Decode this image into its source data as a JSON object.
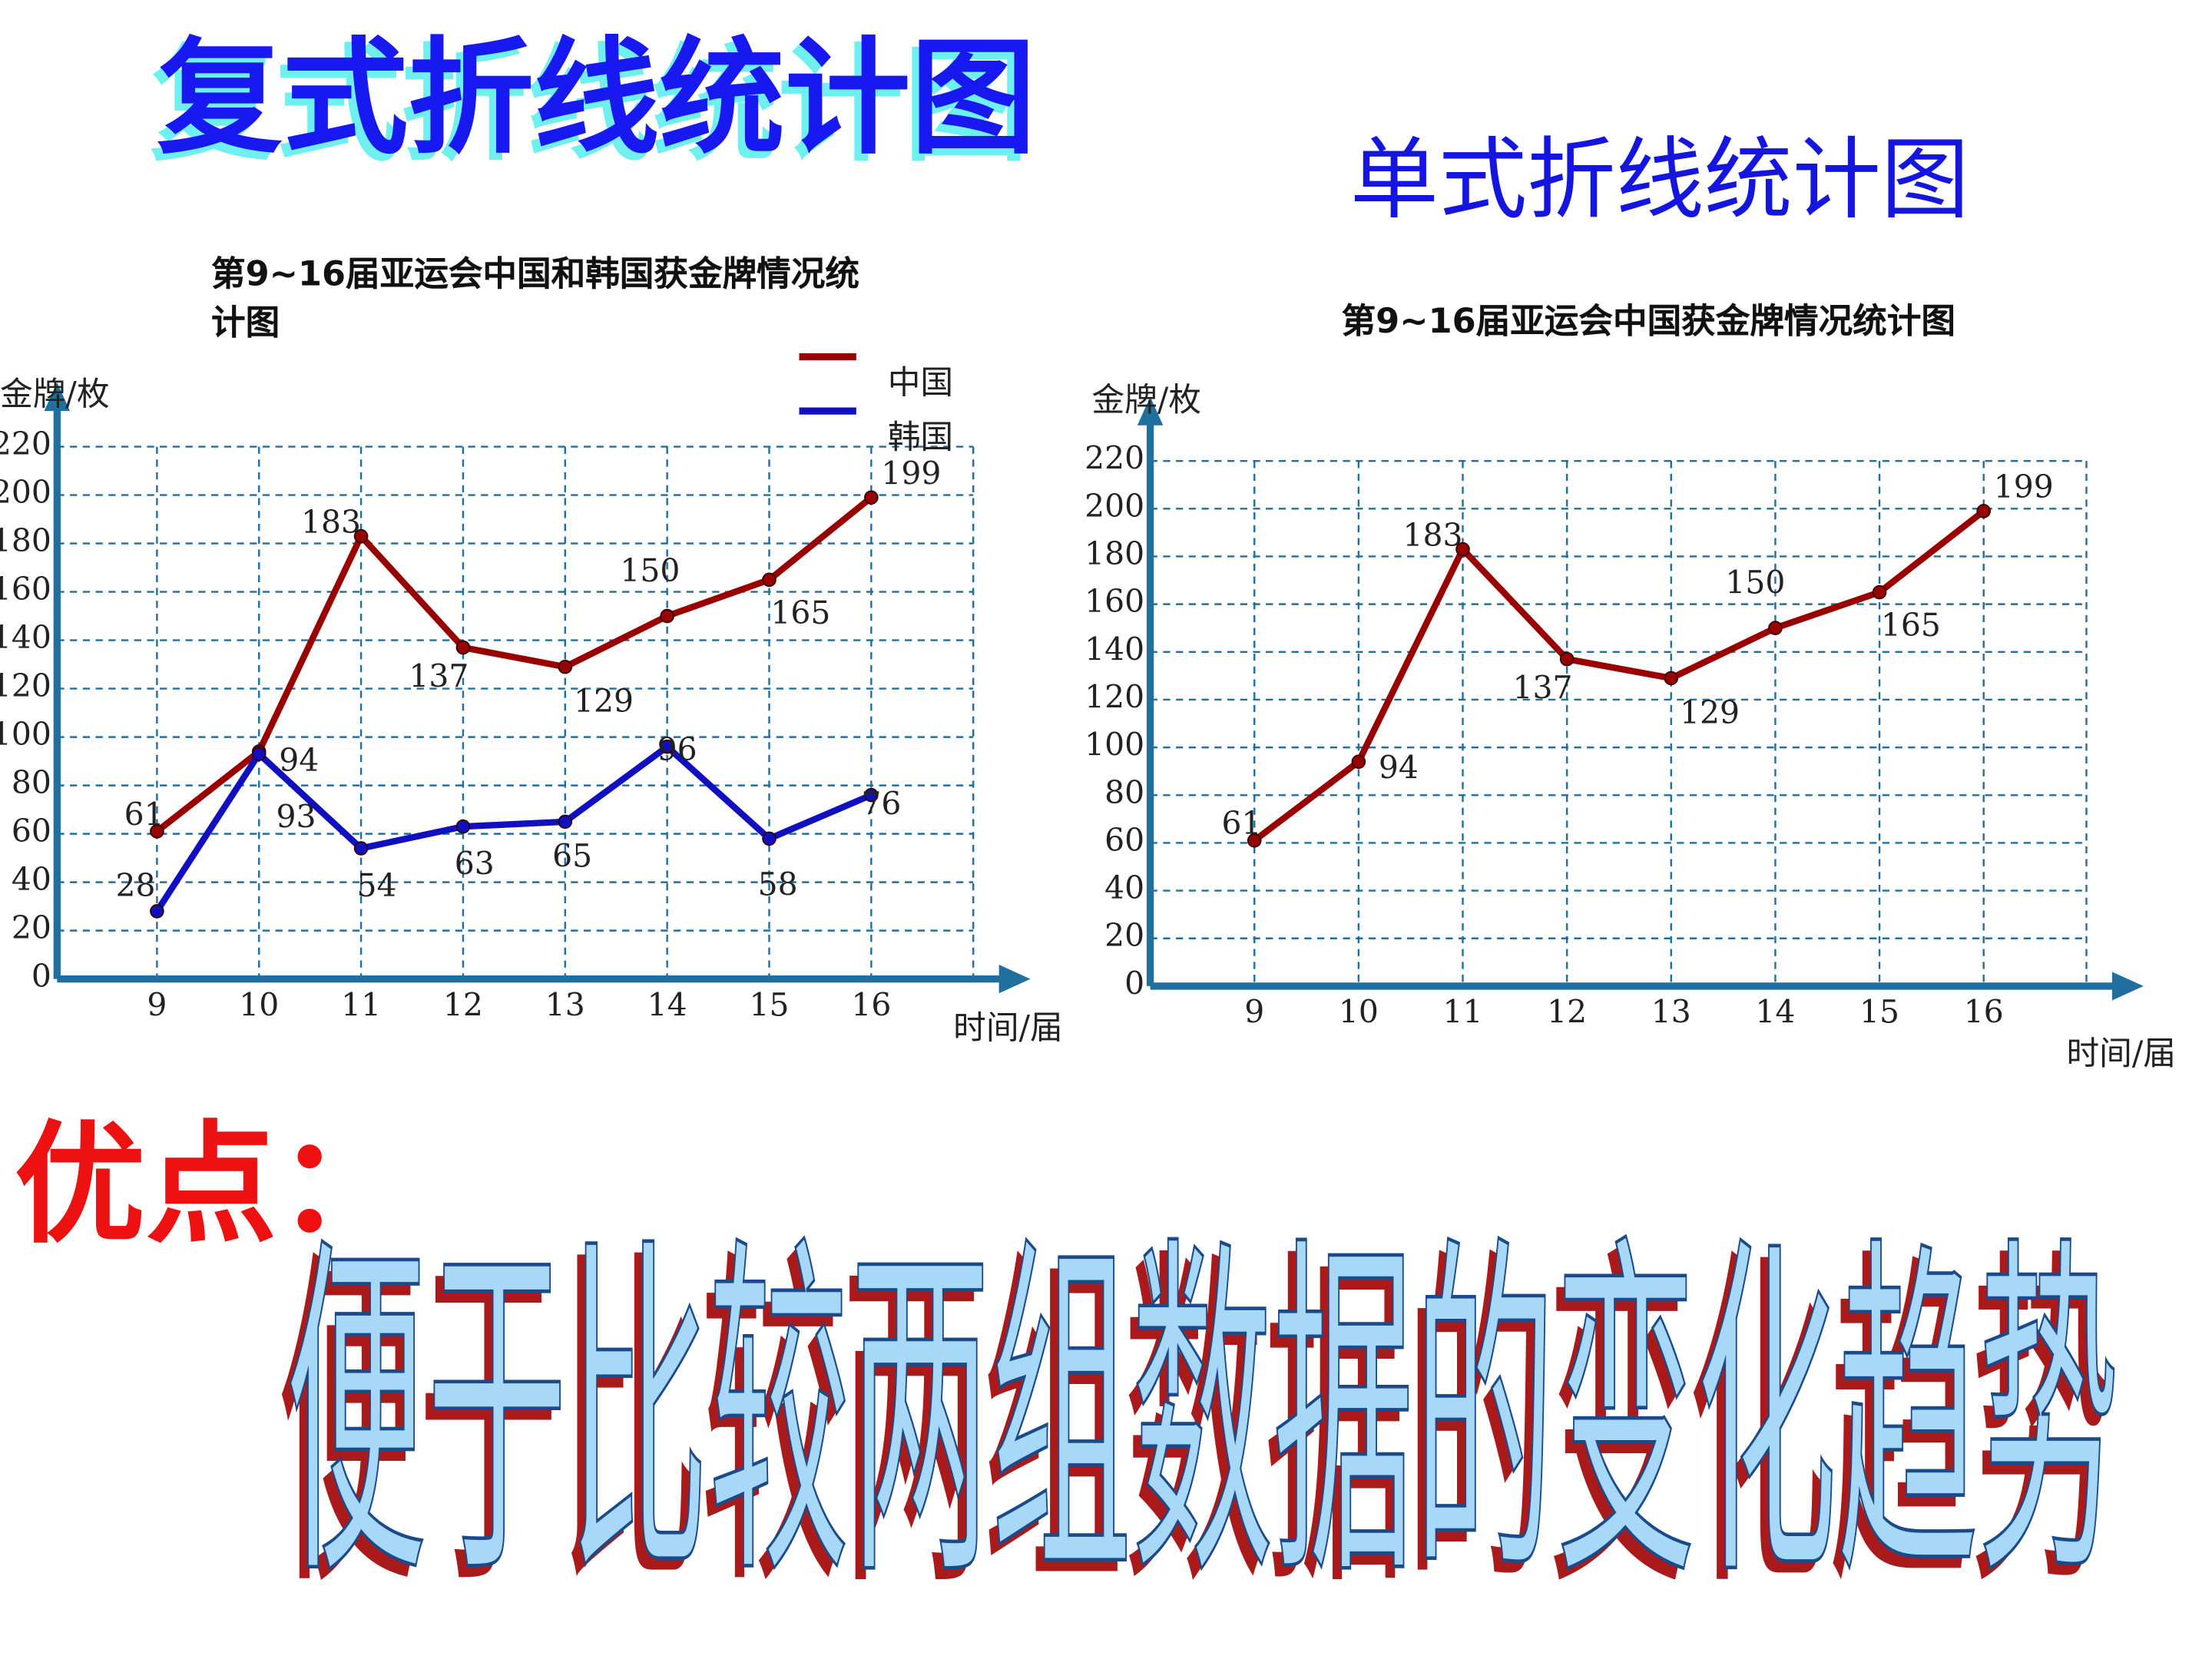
{
  "slide": {
    "title": "复式折线统计图",
    "subtitle": "单式折线统计图",
    "point_label": "优点：",
    "point_text": "便于比较两组数据的变化趋势"
  },
  "chart_data": [
    {
      "type": "line",
      "title": "第9~16届亚运会中国和韩国获金牌情况统计图",
      "y_label": "金牌/枚",
      "x_label": "时间/届",
      "categories": [
        "9",
        "10",
        "11",
        "12",
        "13",
        "14",
        "15",
        "16"
      ],
      "series": [
        {
          "name": "中国",
          "color": "#990000",
          "values": [
            61,
            94,
            183,
            137,
            129,
            150,
            165,
            199
          ]
        },
        {
          "name": "韩国",
          "color": "#1010c0",
          "values": [
            28,
            93,
            54,
            63,
            65,
            96,
            58,
            76
          ]
        }
      ],
      "ylim": [
        0,
        220
      ],
      "yticks": [
        0,
        20,
        40,
        60,
        80,
        100,
        120,
        140,
        160,
        180,
        200,
        220
      ],
      "grid": true
    },
    {
      "type": "line",
      "title": "第9~16届亚运会中国获金牌情况统计图",
      "y_label": "金牌/枚",
      "x_label": "时间/届",
      "categories": [
        "9",
        "10",
        "11",
        "12",
        "13",
        "14",
        "15",
        "16"
      ],
      "series": [
        {
          "color": "#990000",
          "values": [
            61,
            94,
            183,
            137,
            129,
            150,
            165,
            199
          ]
        }
      ],
      "ylim": [
        0,
        220
      ],
      "yticks": [
        0,
        20,
        40,
        60,
        80,
        100,
        120,
        140,
        160,
        180,
        200,
        220
      ],
      "grid": true
    }
  ]
}
